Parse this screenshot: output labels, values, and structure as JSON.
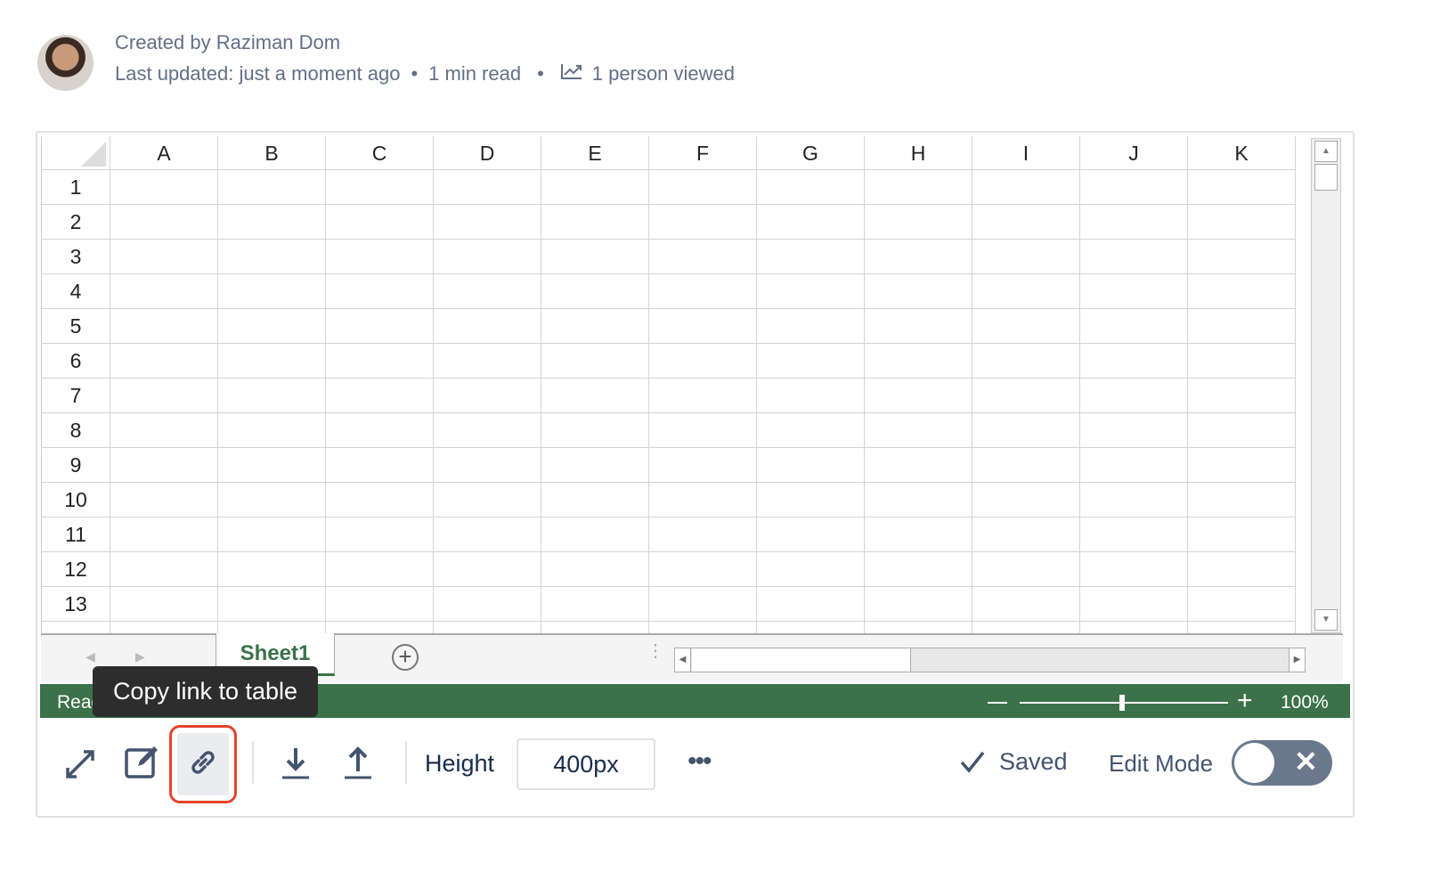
{
  "byline": {
    "created_by": "Created by Raziman Dom",
    "last_updated": "Last updated: just a moment ago",
    "read_time": "1 min read",
    "views": "1 person viewed"
  },
  "sheet": {
    "columns": [
      "A",
      "B",
      "C",
      "D",
      "E",
      "F",
      "G",
      "H",
      "I",
      "J",
      "K"
    ],
    "rows": [
      "1",
      "2",
      "3",
      "4",
      "5",
      "6",
      "7",
      "8",
      "9",
      "10",
      "11",
      "12",
      "13"
    ],
    "tab": "Sheet1",
    "status": "Ready",
    "zoom": "100%",
    "zoom_level_percent": 100
  },
  "tooltip": "Copy link to table",
  "toolbar": {
    "height_label": "Height",
    "height_value": "400px",
    "saved": "Saved",
    "edit_mode": "Edit Mode",
    "edit_mode_on": false
  },
  "colors": {
    "accent_green": "#3b7249",
    "highlight": "#e5432b"
  }
}
